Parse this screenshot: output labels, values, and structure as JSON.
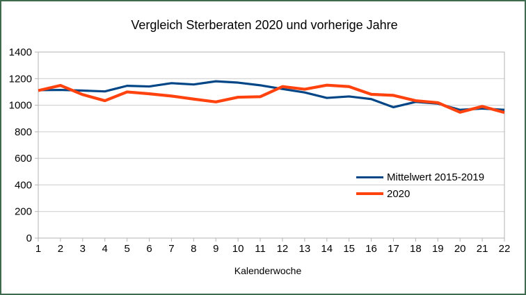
{
  "frame": {
    "border_color": "#3e6b4e",
    "background_color": "#ffffff"
  },
  "chart_data": {
    "type": "line",
    "title": "Vergleich Sterberaten 2020 und vorherige Jahre",
    "xlabel": "Kalenderwoche",
    "ylabel": "",
    "x": [
      1,
      2,
      3,
      4,
      5,
      6,
      7,
      8,
      9,
      10,
      11,
      12,
      13,
      14,
      15,
      16,
      17,
      18,
      19,
      20,
      21,
      22
    ],
    "series": [
      {
        "name": "Mittelwert 2015-2019",
        "color": "#004586",
        "stroke_width": 3.2,
        "values": [
          1113,
          1115,
          1110,
          1104,
          1146,
          1141,
          1166,
          1156,
          1180,
          1170,
          1150,
          1122,
          1096,
          1055,
          1066,
          1046,
          985,
          1025,
          1012,
          965,
          975,
          965
        ]
      },
      {
        "name": "2020",
        "color": "#ff420e",
        "stroke_width": 4.2,
        "values": [
          1110,
          1149,
          1080,
          1034,
          1100,
          1086,
          1069,
          1046,
          1025,
          1060,
          1064,
          1140,
          1120,
          1151,
          1140,
          1082,
          1074,
          1034,
          1019,
          947,
          991,
          945
        ]
      }
    ],
    "ylim": [
      0,
      1400
    ],
    "yticks": [
      0,
      200,
      400,
      600,
      800,
      1000,
      1200,
      1400
    ],
    "grid": "horizontal",
    "legend_position": "inside-right",
    "axis_color": "#b3b3b3",
    "grid_color": "#cccccc",
    "text_color": "#000000",
    "tick_label_font_size": 15
  }
}
